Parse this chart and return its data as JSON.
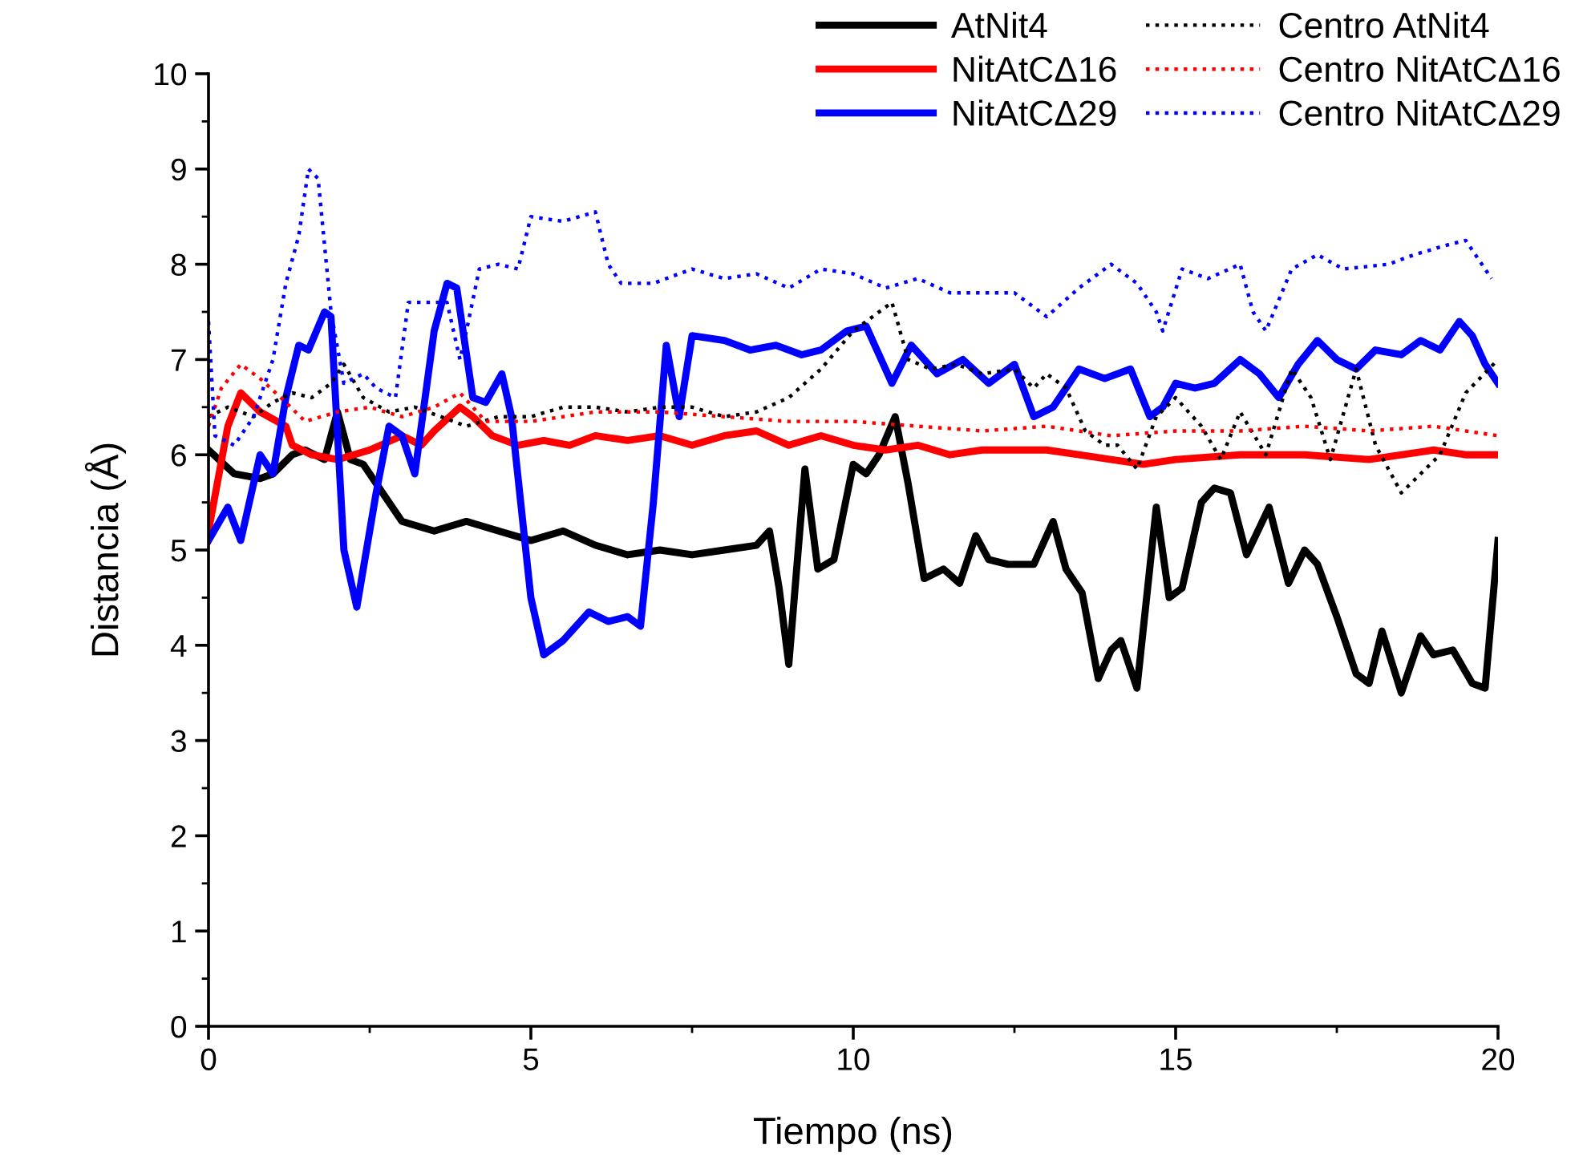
{
  "chart_data": {
    "type": "line",
    "xlabel": "Tiempo (ns)",
    "ylabel": "Distancia (Å)",
    "xlim": [
      0,
      20
    ],
    "ylim": [
      0,
      10
    ],
    "xticks": [
      0,
      5,
      10,
      15,
      20
    ],
    "yticks": [
      0,
      1,
      2,
      3,
      4,
      5,
      6,
      7,
      8,
      9,
      10
    ],
    "grid": false,
    "legend": "top right",
    "marker": "none",
    "series": [
      {
        "name": "AtNit4",
        "color": "#000000",
        "line_style": "solid",
        "x": [
          0,
          0.4,
          0.8,
          1.0,
          1.3,
          1.5,
          1.8,
          2.0,
          2.2,
          2.4,
          2.7,
          3.0,
          3.5,
          4.0,
          4.5,
          5.0,
          5.5,
          6.0,
          6.5,
          7.0,
          7.5,
          8.0,
          8.5,
          8.7,
          8.85,
          9.0,
          9.25,
          9.45,
          9.7,
          10.0,
          10.2,
          10.4,
          10.65,
          10.85,
          11.1,
          11.4,
          11.65,
          11.9,
          12.1,
          12.4,
          12.8,
          13.1,
          13.3,
          13.55,
          13.8,
          14.0,
          14.15,
          14.4,
          14.7,
          14.9,
          15.1,
          15.4,
          15.6,
          15.85,
          16.1,
          16.45,
          16.75,
          17.0,
          17.2,
          17.5,
          17.8,
          18.0,
          18.2,
          18.5,
          18.8,
          19.0,
          19.3,
          19.6,
          19.8,
          20.0
        ],
        "values": [
          6.05,
          5.8,
          5.75,
          5.8,
          6.0,
          6.05,
          5.95,
          6.45,
          5.95,
          5.9,
          5.6,
          5.3,
          5.2,
          5.3,
          5.2,
          5.1,
          5.2,
          5.05,
          4.95,
          5.0,
          4.95,
          5.0,
          5.05,
          5.2,
          4.6,
          3.8,
          5.85,
          4.8,
          4.9,
          5.9,
          5.8,
          6.0,
          6.4,
          5.7,
          4.7,
          4.8,
          4.65,
          5.15,
          4.9,
          4.85,
          4.85,
          5.3,
          4.8,
          4.55,
          3.65,
          3.95,
          4.05,
          3.55,
          5.45,
          4.5,
          4.6,
          5.5,
          5.65,
          5.6,
          4.95,
          5.45,
          4.65,
          5.0,
          4.85,
          4.3,
          3.7,
          3.6,
          4.15,
          3.5,
          4.1,
          3.9,
          3.95,
          3.6,
          3.55,
          5.1
        ]
      },
      {
        "name": "NitAtCΔ16",
        "color": "#ff0000",
        "line_style": "solid",
        "x": [
          0,
          0.3,
          0.5,
          0.8,
          1.2,
          1.3,
          1.6,
          2.0,
          2.5,
          3.0,
          3.3,
          3.5,
          3.9,
          4.1,
          4.4,
          4.8,
          5.2,
          5.6,
          6.0,
          6.5,
          7.0,
          7.5,
          8.0,
          8.5,
          9.0,
          9.5,
          10.0,
          10.5,
          11.0,
          11.5,
          12.0,
          13.0,
          13.5,
          14.0,
          14.5,
          15.0,
          16.0,
          17.0,
          18.0,
          19.0,
          19.5,
          20.0
        ],
        "values": [
          5.2,
          6.3,
          6.65,
          6.45,
          6.3,
          6.1,
          6.0,
          5.95,
          6.05,
          6.2,
          6.1,
          6.25,
          6.5,
          6.4,
          6.2,
          6.1,
          6.15,
          6.1,
          6.2,
          6.15,
          6.2,
          6.1,
          6.2,
          6.25,
          6.1,
          6.2,
          6.1,
          6.05,
          6.1,
          6.0,
          6.05,
          6.05,
          6.0,
          5.95,
          5.9,
          5.95,
          6.0,
          6.0,
          5.95,
          6.05,
          6.0,
          6.0
        ]
      },
      {
        "name": "NitAtCΔ29",
        "color": "#0000ff",
        "line_style": "solid",
        "x": [
          0,
          0.3,
          0.5,
          0.8,
          1.0,
          1.2,
          1.4,
          1.55,
          1.8,
          1.9,
          2.1,
          2.3,
          2.6,
          2.8,
          3.0,
          3.2,
          3.5,
          3.7,
          3.85,
          4.1,
          4.3,
          4.55,
          4.7,
          5.0,
          5.2,
          5.5,
          5.7,
          5.9,
          6.2,
          6.5,
          6.7,
          6.9,
          7.1,
          7.3,
          7.5,
          8.0,
          8.4,
          8.8,
          9.2,
          9.5,
          9.9,
          10.2,
          10.4,
          10.6,
          10.9,
          11.3,
          11.7,
          12.1,
          12.5,
          12.8,
          13.1,
          13.5,
          13.9,
          14.3,
          14.6,
          14.8,
          15.0,
          15.3,
          15.6,
          16.0,
          16.3,
          16.6,
          16.9,
          17.2,
          17.5,
          17.8,
          18.1,
          18.5,
          18.8,
          19.1,
          19.4,
          19.6,
          19.8,
          20.0
        ],
        "values": [
          5.1,
          5.45,
          5.1,
          6.0,
          5.8,
          6.6,
          7.15,
          7.1,
          7.5,
          7.45,
          5.0,
          4.4,
          5.6,
          6.3,
          6.2,
          5.8,
          7.3,
          7.8,
          7.75,
          6.6,
          6.55,
          6.85,
          6.4,
          4.5,
          3.9,
          4.05,
          4.2,
          4.35,
          4.25,
          4.3,
          4.2,
          5.5,
          7.15,
          6.4,
          7.25,
          7.2,
          7.1,
          7.15,
          7.05,
          7.1,
          7.3,
          7.35,
          7.05,
          6.75,
          7.15,
          6.85,
          7.0,
          6.75,
          6.95,
          6.4,
          6.5,
          6.9,
          6.8,
          6.9,
          6.4,
          6.5,
          6.75,
          6.7,
          6.75,
          7.0,
          6.85,
          6.6,
          6.95,
          7.2,
          7.0,
          6.9,
          7.1,
          7.05,
          7.2,
          7.1,
          7.4,
          7.25,
          6.95,
          6.75
        ]
      },
      {
        "name": "Centro AtNit4",
        "color": "#000000",
        "line_style": "dotted",
        "x": [
          0,
          0.3,
          0.7,
          1.0,
          1.3,
          1.6,
          1.9,
          2.1,
          2.4,
          2.8,
          3.2,
          3.6,
          4.0,
          4.5,
          5.0,
          5.5,
          6.0,
          6.5,
          7.0,
          7.5,
          8.0,
          8.5,
          9.0,
          9.5,
          10.0,
          10.3,
          10.6,
          10.85,
          11.2,
          11.6,
          12.0,
          12.5,
          12.8,
          13.0,
          13.3,
          13.6,
          13.9,
          14.1,
          14.4,
          14.7,
          15.0,
          15.4,
          15.7,
          16.0,
          16.4,
          16.8,
          17.1,
          17.4,
          17.8,
          18.1,
          18.5,
          18.8,
          19.1,
          19.5,
          20.0
        ],
        "values": [
          6.4,
          6.5,
          6.4,
          6.55,
          6.65,
          6.6,
          6.75,
          6.95,
          6.6,
          6.45,
          6.5,
          6.4,
          6.3,
          6.4,
          6.4,
          6.5,
          6.5,
          6.45,
          6.5,
          6.5,
          6.4,
          6.45,
          6.6,
          6.9,
          7.3,
          7.45,
          7.6,
          7.0,
          6.9,
          6.95,
          6.85,
          6.9,
          6.7,
          6.85,
          6.7,
          6.25,
          6.1,
          6.1,
          5.85,
          6.4,
          6.6,
          6.3,
          5.95,
          6.45,
          6.0,
          6.9,
          6.6,
          5.95,
          6.9,
          6.1,
          5.6,
          5.8,
          6.0,
          6.65,
          7.0
        ]
      },
      {
        "name": "Centro NitAtCΔ16",
        "color": "#ff0000",
        "line_style": "dotted",
        "x": [
          0,
          0.2,
          0.5,
          0.8,
          1.2,
          1.5,
          2.0,
          2.5,
          3.0,
          3.5,
          3.9,
          4.3,
          5.0,
          5.5,
          6.0,
          7.0,
          8.0,
          9.0,
          10.0,
          11.0,
          12.0,
          13.0,
          14.0,
          15.0,
          16.0,
          17.0,
          18.0,
          19.0,
          20.0
        ],
        "values": [
          6.3,
          6.7,
          6.95,
          6.8,
          6.55,
          6.35,
          6.45,
          6.5,
          6.4,
          6.5,
          6.65,
          6.35,
          6.35,
          6.4,
          6.45,
          6.45,
          6.4,
          6.35,
          6.35,
          6.3,
          6.25,
          6.3,
          6.2,
          6.25,
          6.25,
          6.3,
          6.25,
          6.3,
          6.2
        ]
      },
      {
        "name": "Centro NitAtCΔ29",
        "color": "#0000ff",
        "line_style": "dotted",
        "x": [
          0,
          0.1,
          0.4,
          0.7,
          1.0,
          1.2,
          1.4,
          1.55,
          1.7,
          1.9,
          2.1,
          2.4,
          2.6,
          2.9,
          3.1,
          3.4,
          3.7,
          3.9,
          4.0,
          4.2,
          4.5,
          4.8,
          5.0,
          5.5,
          6.0,
          6.2,
          6.4,
          6.9,
          7.5,
          8.0,
          8.5,
          9.0,
          9.5,
          10.0,
          10.5,
          11.0,
          11.5,
          12.5,
          13.0,
          13.5,
          14.0,
          14.4,
          14.7,
          14.8,
          15.1,
          15.5,
          16.0,
          16.2,
          16.4,
          16.8,
          17.2,
          17.6,
          18.3,
          18.7,
          19.2,
          19.5,
          19.9
        ],
        "values": [
          7.4,
          6.2,
          6.1,
          6.4,
          7.0,
          7.8,
          8.3,
          9.0,
          8.9,
          7.5,
          6.75,
          6.85,
          6.7,
          6.6,
          7.6,
          7.6,
          7.6,
          7.0,
          7.3,
          7.95,
          8.0,
          7.95,
          8.5,
          8.45,
          8.55,
          8.0,
          7.8,
          7.8,
          7.95,
          7.85,
          7.9,
          7.75,
          7.95,
          7.9,
          7.75,
          7.85,
          7.7,
          7.7,
          7.45,
          7.75,
          8.0,
          7.8,
          7.5,
          7.3,
          7.95,
          7.85,
          8.0,
          7.5,
          7.3,
          7.95,
          8.1,
          7.95,
          8.0,
          8.1,
          8.2,
          8.25,
          7.85
        ]
      }
    ]
  }
}
